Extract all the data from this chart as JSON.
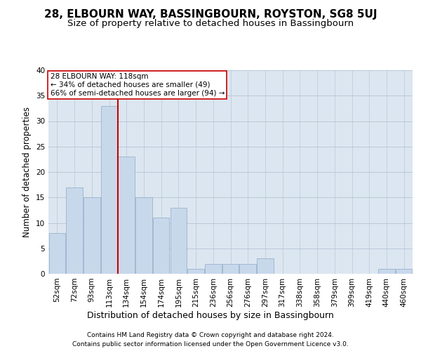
{
  "title": "28, ELBOURN WAY, BASSINGBOURN, ROYSTON, SG8 5UJ",
  "subtitle": "Size of property relative to detached houses in Bassingbourn",
  "xlabel": "Distribution of detached houses by size in Bassingbourn",
  "ylabel": "Number of detached properties",
  "footnote1": "Contains HM Land Registry data © Crown copyright and database right 2024.",
  "footnote2": "Contains public sector information licensed under the Open Government Licence v3.0.",
  "bins": [
    "52sqm",
    "72sqm",
    "93sqm",
    "113sqm",
    "134sqm",
    "154sqm",
    "174sqm",
    "195sqm",
    "215sqm",
    "236sqm",
    "256sqm",
    "276sqm",
    "297sqm",
    "317sqm",
    "338sqm",
    "358sqm",
    "379sqm",
    "399sqm",
    "419sqm",
    "440sqm",
    "460sqm"
  ],
  "values": [
    8,
    17,
    15,
    33,
    23,
    15,
    11,
    13,
    1,
    2,
    2,
    2,
    3,
    0,
    0,
    0,
    0,
    0,
    0,
    1,
    1
  ],
  "bar_color": "#c8d8eb",
  "bar_edge_color": "#9ab4cc",
  "grid_color": "#b8c8d8",
  "background_color": "#dce6f0",
  "vline_color": "#cc0000",
  "vline_bin": 3,
  "annotation_text": "28 ELBOURN WAY: 118sqm\n← 34% of detached houses are smaller (49)\n66% of semi-detached houses are larger (94) →",
  "annotation_box_edgecolor": "#cc0000",
  "ylim": [
    0,
    40
  ],
  "yticks": [
    0,
    5,
    10,
    15,
    20,
    25,
    30,
    35,
    40
  ],
  "title_fontsize": 11,
  "subtitle_fontsize": 9.5,
  "xlabel_fontsize": 9,
  "ylabel_fontsize": 8.5,
  "tick_fontsize": 7.5,
  "annotation_fontsize": 7.5,
  "footnote_fontsize": 6.5
}
